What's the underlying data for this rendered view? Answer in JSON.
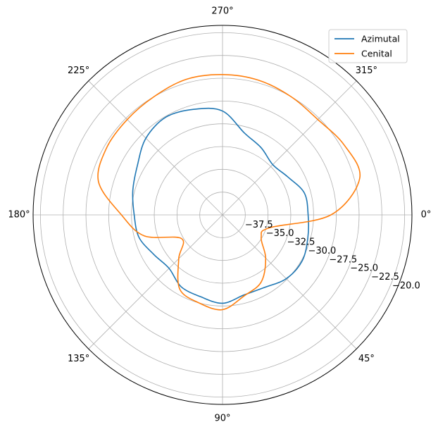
{
  "chart_data": {
    "type": "polar-line",
    "title": "",
    "theta_direction": "clockwise",
    "theta_zero_location": "right",
    "angle_ticks": [
      {
        "deg": 0,
        "label": "0°"
      },
      {
        "deg": 45,
        "label": "45°"
      },
      {
        "deg": 90,
        "label": "90°"
      },
      {
        "deg": 135,
        "label": "135°"
      },
      {
        "deg": 180,
        "label": "180°"
      },
      {
        "deg": 225,
        "label": "225°"
      },
      {
        "deg": 270,
        "label": "270°"
      },
      {
        "deg": 315,
        "label": "315°"
      }
    ],
    "rlim": [
      -40,
      -19.2
    ],
    "r_ticks": [
      {
        "value": -37.5,
        "label": "−37.5"
      },
      {
        "value": -35.0,
        "label": "−35.0"
      },
      {
        "value": -32.5,
        "label": "−32.5"
      },
      {
        "value": -30.0,
        "label": "−30.0"
      },
      {
        "value": -27.5,
        "label": "−27.5"
      },
      {
        "value": -25.0,
        "label": "−25.0"
      },
      {
        "value": -22.5,
        "label": "−22.5"
      },
      {
        "value": -20.0,
        "label": "−20.0"
      }
    ],
    "r_label_angle_deg": 22.5,
    "grid": true,
    "legend_position": "top-right",
    "series": [
      {
        "name": "Azimutal",
        "color": "#1f77b4",
        "theta": [
          0,
          15,
          30,
          45,
          60,
          75,
          90,
          105,
          120,
          135,
          150,
          165,
          180,
          195,
          210,
          225,
          240,
          255,
          270,
          285,
          300,
          315,
          330,
          345,
          360
        ],
        "r": [
          -30.6,
          -30.3,
          -29.9,
          -30.1,
          -30.8,
          -30.9,
          -30.3,
          -30.7,
          -30.9,
          -31.7,
          -31.3,
          -30.5,
          -30.3,
          -29.8,
          -29.2,
          -28.1,
          -27.6,
          -28.0,
          -28.6,
          -30.7,
          -31.5,
          -32.2,
          -31.7,
          -30.7,
          -30.6
        ]
      },
      {
        "name": "Cenital",
        "color": "#ff7f0e",
        "theta": [
          0,
          15,
          30,
          45,
          60,
          75,
          90,
          105,
          120,
          135,
          150,
          165,
          180,
          195,
          210,
          225,
          240,
          255,
          270,
          285,
          300,
          315,
          330,
          345,
          360
        ],
        "r": [
          -28.1,
          -34.6,
          -35.1,
          -33.3,
          -31.5,
          -30.8,
          -29.6,
          -30.0,
          -30.6,
          -33.2,
          -34.8,
          -31.1,
          -28.9,
          -25.9,
          -25.3,
          -25.2,
          -25.0,
          -24.6,
          -24.6,
          -24.7,
          -25.0,
          -25.2,
          -24.6,
          -24.4,
          -28.1
        ]
      }
    ]
  }
}
